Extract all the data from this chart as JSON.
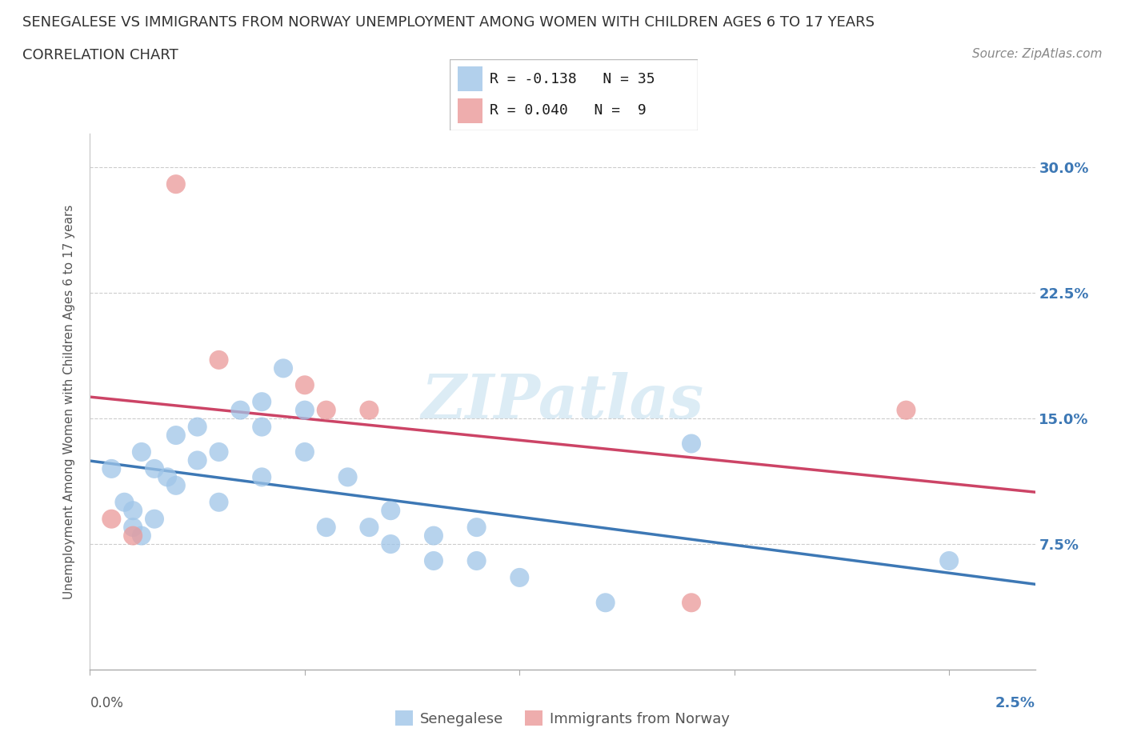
{
  "title_line1": "SENEGALESE VS IMMIGRANTS FROM NORWAY UNEMPLOYMENT AMONG WOMEN WITH CHILDREN AGES 6 TO 17 YEARS",
  "title_line2": "CORRELATION CHART",
  "source": "Source: ZipAtlas.com",
  "ylabel": "Unemployment Among Women with Children Ages 6 to 17 years",
  "watermark": "ZIPatlas",
  "legend_label1": "Senegalese",
  "legend_label2": "Immigrants from Norway",
  "R1": -0.138,
  "N1": 35,
  "R2": 0.04,
  "N2": 9,
  "color_blue": "#9fc5e8",
  "color_pink": "#ea9999",
  "line_color_blue": "#3d78b5",
  "line_color_pink": "#cc4466",
  "background_color": "#ffffff",
  "grid_color": "#cccccc",
  "blue_x": [
    0.005,
    0.008,
    0.01,
    0.01,
    0.012,
    0.012,
    0.015,
    0.015,
    0.018,
    0.02,
    0.02,
    0.025,
    0.025,
    0.03,
    0.03,
    0.035,
    0.04,
    0.04,
    0.04,
    0.045,
    0.05,
    0.05,
    0.055,
    0.06,
    0.065,
    0.07,
    0.07,
    0.08,
    0.08,
    0.09,
    0.09,
    0.1,
    0.12,
    0.14,
    0.2
  ],
  "blue_y": [
    0.12,
    0.1,
    0.095,
    0.085,
    0.13,
    0.08,
    0.12,
    0.09,
    0.115,
    0.14,
    0.11,
    0.145,
    0.125,
    0.13,
    0.1,
    0.155,
    0.16,
    0.145,
    0.115,
    0.18,
    0.155,
    0.13,
    0.085,
    0.115,
    0.085,
    0.095,
    0.075,
    0.08,
    0.065,
    0.085,
    0.065,
    0.055,
    0.04,
    0.135,
    0.065
  ],
  "pink_x": [
    0.005,
    0.01,
    0.02,
    0.03,
    0.05,
    0.055,
    0.065,
    0.14,
    0.19
  ],
  "pink_y": [
    0.09,
    0.08,
    0.29,
    0.185,
    0.17,
    0.155,
    0.155,
    0.04,
    0.155
  ],
  "xlim": [
    0.0,
    0.22
  ],
  "ylim": [
    0.0,
    0.32
  ],
  "yticks": [
    0.0,
    0.075,
    0.15,
    0.225,
    0.3
  ],
  "right_ytick_labels": [
    "",
    "7.5%",
    "15.0%",
    "22.5%",
    "30.0%"
  ],
  "xticks": [
    0.0,
    0.05,
    0.1,
    0.15,
    0.2
  ],
  "bottom_left_label": "0.0%",
  "bottom_right_label": "2.5%"
}
